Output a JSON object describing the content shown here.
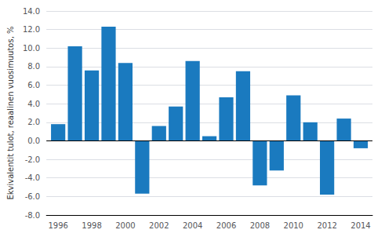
{
  "chart_data": {
    "type": "bar",
    "x": [
      1996,
      1997,
      1998,
      1999,
      2000,
      2001,
      2002,
      2003,
      2004,
      2005,
      2006,
      2007,
      2008,
      2009,
      2010,
      2011,
      2012,
      2013,
      2014
    ],
    "values": [
      1.8,
      10.2,
      7.6,
      12.3,
      8.4,
      -5.7,
      1.6,
      3.7,
      8.6,
      0.5,
      4.7,
      7.5,
      -4.8,
      -3.2,
      4.9,
      2.0,
      -5.8,
      2.4,
      -0.8
    ],
    "color": "#1a7abf",
    "ylabel": "Ekvivalentit tulot, reaalinen vuosimuutos, %",
    "xlim": [
      1995.3,
      2014.7
    ],
    "xticks": [
      1996,
      1998,
      2000,
      2002,
      2004,
      2006,
      2008,
      2010,
      2012,
      2014
    ],
    "ylim": [
      -8.0,
      14.0
    ],
    "yticks": [
      {
        "value": -8.0,
        "label": "-8.0"
      },
      {
        "value": -6.0,
        "label": "-6.0"
      },
      {
        "value": -4.0,
        "label": "-4.0"
      },
      {
        "value": -2.0,
        "label": "-2.0"
      },
      {
        "value": 0.0,
        "label": "0.0"
      },
      {
        "value": 2.0,
        "label": "2.0"
      },
      {
        "value": 4.0,
        "label": "4.0"
      },
      {
        "value": 6.0,
        "label": "6.0"
      },
      {
        "value": 8.0,
        "label": "8.0"
      },
      {
        "value": 10.0,
        "label": "10.0"
      },
      {
        "value": 12.0,
        "label": "12.0"
      },
      {
        "value": 14.0,
        "label": "14.0"
      }
    ],
    "grid": true
  }
}
